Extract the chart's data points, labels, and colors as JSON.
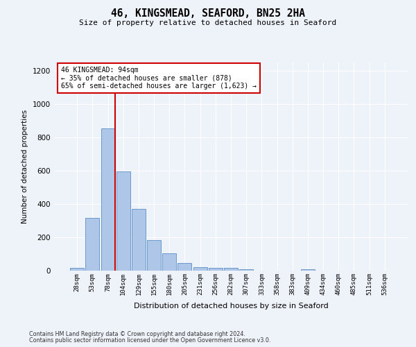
{
  "title": "46, KINGSMEAD, SEAFORD, BN25 2HA",
  "subtitle": "Size of property relative to detached houses in Seaford",
  "xlabel": "Distribution of detached houses by size in Seaford",
  "ylabel": "Number of detached properties",
  "footnote1": "Contains HM Land Registry data © Crown copyright and database right 2024.",
  "footnote2": "Contains public sector information licensed under the Open Government Licence v3.0.",
  "bar_labels": [
    "28sqm",
    "53sqm",
    "78sqm",
    "104sqm",
    "129sqm",
    "155sqm",
    "180sqm",
    "205sqm",
    "231sqm",
    "256sqm",
    "282sqm",
    "307sqm",
    "333sqm",
    "358sqm",
    "383sqm",
    "409sqm",
    "434sqm",
    "460sqm",
    "485sqm",
    "511sqm",
    "536sqm"
  ],
  "bar_values": [
    15,
    315,
    855,
    597,
    370,
    185,
    105,
    47,
    22,
    18,
    18,
    10,
    0,
    0,
    0,
    10,
    0,
    0,
    0,
    0,
    0
  ],
  "bar_color": "#aec6e8",
  "bar_edge_color": "#5b8ec4",
  "ylim": [
    0,
    1250
  ],
  "yticks": [
    0,
    200,
    400,
    600,
    800,
    1000,
    1200
  ],
  "annotation_text": "46 KINGSMEAD: 94sqm\n← 35% of detached houses are smaller (878)\n65% of semi-detached houses are larger (1,623) →",
  "annotation_box_color": "#ffffff",
  "annotation_box_edge_color": "#cc0000",
  "vline_color": "#cc0000",
  "property_bin_index": 2,
  "background_color": "#eef2f9"
}
